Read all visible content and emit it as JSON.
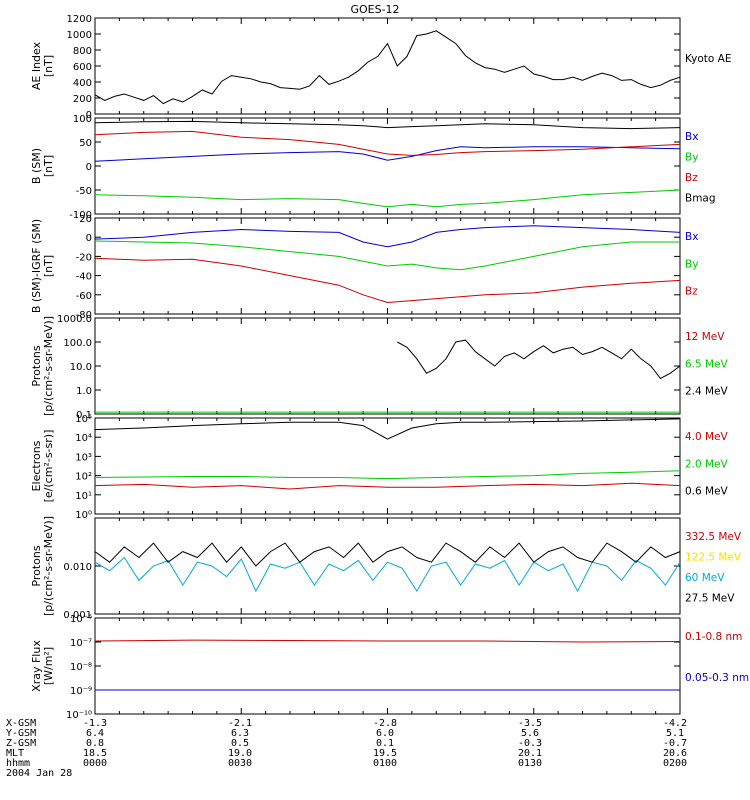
{
  "chart_data": {
    "title": "GOES-12",
    "type": "line",
    "x_time": [
      0,
      5,
      10,
      15,
      20,
      25,
      30,
      35,
      40,
      45,
      50,
      55,
      60,
      65,
      70,
      75,
      80,
      85,
      90,
      95,
      100,
      105,
      110,
      115,
      120
    ],
    "panels": [
      {
        "id": "ae",
        "ylabel": "AE Index\n[nT]",
        "scale": "linear",
        "ylim": [
          0,
          1200
        ],
        "yticks": [
          0,
          200,
          400,
          600,
          800,
          1000,
          1200
        ],
        "series": [
          {
            "name": "Kyoto AE",
            "color": "#000000",
            "x": [
              0,
              2,
              4,
              6,
              8,
              10,
              12,
              14,
              16,
              18,
              20,
              22,
              24,
              26,
              28,
              30,
              32,
              34,
              36,
              38,
              40,
              42,
              44,
              46,
              48,
              50,
              52,
              54,
              56,
              58,
              60,
              62,
              64,
              66,
              68,
              70,
              72,
              74,
              76,
              78,
              80,
              82,
              84,
              86,
              88,
              90,
              92,
              94,
              96,
              98,
              100,
              102,
              104,
              106,
              108,
              110,
              112,
              114,
              116,
              118,
              120
            ],
            "y": [
              240,
              170,
              220,
              250,
              210,
              170,
              230,
              130,
              190,
              150,
              220,
              300,
              250,
              410,
              480,
              460,
              440,
              400,
              380,
              330,
              320,
              310,
              350,
              480,
              370,
              410,
              460,
              540,
              650,
              720,
              880,
              600,
              720,
              980,
              1000,
              1040,
              960,
              880,
              730,
              640,
              580,
              560,
              520,
              560,
              600,
              500,
              470,
              430,
              430,
              460,
              420,
              470,
              510,
              480,
              420,
              430,
              370,
              330,
              360,
              420,
              460
            ]
          }
        ]
      },
      {
        "id": "b_sm",
        "ylabel": "B (SM)\n[nT]",
        "scale": "linear",
        "ylim": [
          -100,
          100
        ],
        "yticks": [
          -100,
          -50,
          0,
          50,
          100
        ],
        "series": [
          {
            "name": "Bx",
            "color": "#0000cc",
            "x": [
              0,
              10,
              20,
              30,
              40,
              50,
              55,
              60,
              65,
              70,
              75,
              80,
              90,
              100,
              110,
              120
            ],
            "y": [
              10,
              15,
              20,
              25,
              28,
              30,
              25,
              12,
              20,
              32,
              40,
              38,
              40,
              40,
              38,
              36
            ]
          },
          {
            "name": "By",
            "color": "#00cc00",
            "x": [
              0,
              10,
              20,
              30,
              40,
              50,
              55,
              60,
              65,
              70,
              75,
              80,
              90,
              100,
              110,
              120
            ],
            "y": [
              -60,
              -62,
              -65,
              -70,
              -68,
              -70,
              -78,
              -85,
              -80,
              -85,
              -80,
              -78,
              -70,
              -60,
              -55,
              -50
            ]
          },
          {
            "name": "Bz",
            "color": "#cc0000",
            "x": [
              0,
              10,
              20,
              30,
              40,
              50,
              55,
              60,
              65,
              70,
              75,
              80,
              90,
              100,
              110,
              120
            ],
            "y": [
              65,
              70,
              72,
              60,
              55,
              45,
              35,
              25,
              22,
              24,
              28,
              30,
              32,
              35,
              40,
              45
            ]
          },
          {
            "name": "Bmag",
            "color": "#000000",
            "x": [
              0,
              10,
              20,
              30,
              40,
              50,
              55,
              60,
              65,
              70,
              75,
              80,
              90,
              100,
              110,
              120
            ],
            "y": [
              90,
              92,
              93,
              90,
              88,
              86,
              84,
              80,
              82,
              84,
              86,
              88,
              86,
              80,
              78,
              80
            ]
          }
        ]
      },
      {
        "id": "b_diff",
        "ylabel": "B (SM)-IGRF (SM)\n[nT]",
        "scale": "linear",
        "ylim": [
          -80,
          20
        ],
        "yticks": [
          -80,
          -60,
          -40,
          -20,
          0,
          20
        ],
        "series": [
          {
            "name": "Bx",
            "color": "#0000cc",
            "x": [
              0,
              10,
              20,
              30,
              40,
              50,
              55,
              60,
              65,
              70,
              75,
              80,
              90,
              100,
              110,
              120
            ],
            "y": [
              -2,
              0,
              5,
              8,
              6,
              5,
              -5,
              -10,
              -5,
              5,
              8,
              10,
              12,
              10,
              8,
              5
            ]
          },
          {
            "name": "By",
            "color": "#00cc00",
            "x": [
              0,
              10,
              20,
              30,
              40,
              50,
              55,
              60,
              65,
              70,
              75,
              80,
              90,
              100,
              110,
              120
            ],
            "y": [
              -4,
              -5,
              -6,
              -10,
              -15,
              -20,
              -25,
              -30,
              -28,
              -32,
              -34,
              -30,
              -20,
              -10,
              -5,
              -5
            ]
          },
          {
            "name": "Bz",
            "color": "#cc0000",
            "x": [
              0,
              10,
              20,
              30,
              40,
              50,
              55,
              60,
              65,
              70,
              75,
              80,
              90,
              100,
              110,
              120
            ],
            "y": [
              -22,
              -24,
              -23,
              -30,
              -40,
              -50,
              -60,
              -68,
              -66,
              -64,
              -62,
              -60,
              -58,
              -52,
              -48,
              -45
            ]
          }
        ]
      },
      {
        "id": "protons_low",
        "ylabel": "Protons\n[p/(cm²-s-sr-MeV)]",
        "scale": "log",
        "ylim": [
          0.1,
          1000
        ],
        "yticks": [
          0.1,
          1.0,
          10.0,
          100.0,
          1000.0
        ],
        "ytick_labels": [
          "0.1",
          "1.0",
          "10.0",
          "100.0",
          "1000.0"
        ],
        "series": [
          {
            "name": "12 MeV",
            "color": "#cc0000",
            "x": [],
            "y": []
          },
          {
            "name": "6.5 MeV",
            "color": "#00cc00",
            "x": [
              0,
              120
            ],
            "y": [
              0.12,
              0.12
            ]
          },
          {
            "name": "2.4 MeV",
            "color": "#000000",
            "x": [
              62,
              64,
              66,
              68,
              70,
              72,
              74,
              76,
              78,
              80,
              82,
              84,
              86,
              88,
              90,
              92,
              94,
              96,
              98,
              100,
              102,
              104,
              106,
              108,
              110,
              112,
              114,
              116,
              118,
              120
            ],
            "y": [
              100,
              60,
              20,
              5,
              8,
              20,
              100,
              120,
              40,
              20,
              10,
              25,
              35,
              20,
              40,
              70,
              35,
              50,
              60,
              30,
              40,
              60,
              35,
              20,
              50,
              20,
              10,
              3,
              5,
              10
            ]
          }
        ]
      },
      {
        "id": "electrons",
        "ylabel": "Electrons\n[e/(cm²-s-sr)]",
        "scale": "log",
        "ylim": [
          1,
          100000
        ],
        "yticks": [
          1,
          10,
          100,
          1000,
          10000,
          100000
        ],
        "ytick_labels": [
          "10⁰",
          "10¹",
          "10²",
          "10³",
          "10⁴",
          "10⁵"
        ],
        "series": [
          {
            "name": "4.0 MeV",
            "color": "#cc0000",
            "x": [
              0,
              10,
              20,
              30,
              40,
              50,
              60,
              70,
              80,
              90,
              100,
              110,
              120
            ],
            "y": [
              30,
              35,
              25,
              30,
              20,
              30,
              25,
              25,
              30,
              35,
              30,
              40,
              30
            ]
          },
          {
            "name": "2.0 MeV",
            "color": "#00cc00",
            "x": [
              0,
              10,
              20,
              30,
              40,
              50,
              60,
              70,
              80,
              90,
              100,
              110,
              120
            ],
            "y": [
              80,
              85,
              90,
              90,
              80,
              80,
              70,
              80,
              90,
              100,
              130,
              150,
              180
            ]
          },
          {
            "name": "0.6 MeV",
            "color": "#000000",
            "x": [
              0,
              10,
              20,
              30,
              40,
              50,
              55,
              60,
              65,
              70,
              75,
              80,
              90,
              100,
              110,
              120
            ],
            "y": [
              25000,
              30000,
              40000,
              50000,
              60000,
              60000,
              40000,
              8000,
              30000,
              50000,
              60000,
              60000,
              65000,
              70000,
              80000,
              90000
            ]
          }
        ]
      },
      {
        "id": "protons_high",
        "ylabel": "Protons\n[p/(cm²-s-sr-MeV)]",
        "scale": "log",
        "ylim": [
          0.001,
          0.1
        ],
        "yticks": [
          0.001,
          0.01,
          0.1
        ],
        "ytick_labels": [
          "0.001",
          "0.010",
          ""
        ],
        "series": [
          {
            "name": "332.5 MeV",
            "color": "#cc0000",
            "x": [],
            "y": []
          },
          {
            "name": "122.5 MeV",
            "color": "#ffdd00",
            "x": [],
            "y": []
          },
          {
            "name": "60 MeV",
            "color": "#00aadd",
            "x": [
              0,
              3,
              6,
              9,
              12,
              15,
              18,
              21,
              24,
              27,
              30,
              33,
              36,
              39,
              42,
              45,
              48,
              51,
              54,
              57,
              60,
              63,
              66,
              69,
              72,
              75,
              78,
              81,
              84,
              87,
              90,
              93,
              96,
              99,
              102,
              105,
              108,
              111,
              114,
              117,
              120
            ],
            "y": [
              0.012,
              0.008,
              0.015,
              0.005,
              0.01,
              0.013,
              0.004,
              0.012,
              0.01,
              0.006,
              0.014,
              0.003,
              0.011,
              0.009,
              0.012,
              0.004,
              0.011,
              0.008,
              0.013,
              0.005,
              0.012,
              0.009,
              0.003,
              0.01,
              0.012,
              0.004,
              0.011,
              0.009,
              0.013,
              0.004,
              0.012,
              0.008,
              0.011,
              0.003,
              0.012,
              0.01,
              0.005,
              0.013,
              0.009,
              0.004,
              0.012
            ]
          },
          {
            "name": "27.5 MeV",
            "color": "#000000",
            "x": [
              0,
              3,
              6,
              9,
              12,
              15,
              18,
              21,
              24,
              27,
              30,
              33,
              36,
              39,
              42,
              45,
              48,
              51,
              54,
              57,
              60,
              63,
              66,
              69,
              72,
              75,
              78,
              81,
              84,
              87,
              90,
              93,
              96,
              99,
              102,
              105,
              108,
              111,
              114,
              117,
              120
            ],
            "y": [
              0.02,
              0.012,
              0.025,
              0.015,
              0.03,
              0.012,
              0.02,
              0.015,
              0.03,
              0.012,
              0.025,
              0.01,
              0.02,
              0.03,
              0.012,
              0.02,
              0.025,
              0.015,
              0.03,
              0.012,
              0.02,
              0.025,
              0.015,
              0.012,
              0.03,
              0.02,
              0.012,
              0.025,
              0.015,
              0.03,
              0.012,
              0.02,
              0.025,
              0.015,
              0.012,
              0.03,
              0.02,
              0.012,
              0.025,
              0.015,
              0.02
            ]
          }
        ]
      },
      {
        "id": "xray",
        "ylabel": "Xray Flux\n[W/m²]",
        "scale": "log",
        "ylim": [
          1e-10,
          1e-06
        ],
        "yticks": [
          1e-10,
          1e-09,
          1e-08,
          1e-07,
          1e-06
        ],
        "ytick_labels": [
          "10⁻¹⁰",
          "10⁻⁹",
          "10⁻⁸",
          "10⁻⁷",
          "10⁻⁶"
        ],
        "series": [
          {
            "name": "0.1-0.8 nm",
            "color": "#cc0000",
            "x": [
              0,
              20,
              40,
              60,
              80,
              100,
              120
            ],
            "y": [
              1.1e-07,
              1.2e-07,
              1.15e-07,
              1.1e-07,
              1.1e-07,
              1e-07,
              1.05e-07
            ]
          },
          {
            "name": "0.05-0.3 nm",
            "color": "#0000cc",
            "x": [
              0,
              120
            ],
            "y": [
              1e-09,
              1e-09
            ]
          }
        ]
      }
    ],
    "footer": {
      "rows": [
        {
          "label": "X-GSM",
          "values": [
            "-1.3",
            "-2.1",
            "-2.8",
            "-3.5",
            "-4.2"
          ]
        },
        {
          "label": "Y-GSM",
          "values": [
            "6.4",
            "6.3",
            "6.0",
            "5.6",
            "5.1"
          ]
        },
        {
          "label": "Z-GSM",
          "values": [
            "0.8",
            "0.5",
            "0.1",
            "-0.3",
            "-0.7"
          ]
        },
        {
          "label": "MLT",
          "values": [
            "18.5",
            "19.0",
            "19.5",
            "20.1",
            "20.6"
          ]
        },
        {
          "label": "hhmm",
          "values": [
            "0000",
            "0030",
            "0100",
            "0130",
            "0200"
          ]
        }
      ],
      "date": "2004 Jan 28"
    }
  }
}
